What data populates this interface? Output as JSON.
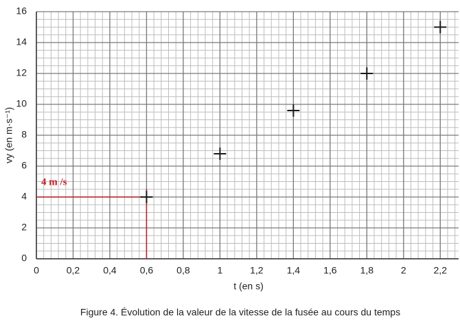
{
  "chart_data": {
    "type": "scatter",
    "title": "Figure 4. Évolution de la valeur de la vitesse de la fusée au cours du temps",
    "xlabel": "t (en s)",
    "ylabel": "vy (en m·s⁻¹)",
    "x": [
      0.6,
      1,
      1.4,
      1.8,
      2.2
    ],
    "values": [
      4,
      6.8,
      9.6,
      12,
      15
    ],
    "color": "#1a1a1a",
    "xlim": [
      0,
      2.3
    ],
    "ylim": [
      0,
      16
    ],
    "xticks": [
      0,
      {
        "value": 0.2,
        "label": "0,2"
      },
      {
        "value": 0.4,
        "label": "0,4"
      },
      {
        "value": 0.6,
        "label": "0,6"
      },
      {
        "value": 0.8,
        "label": "0,8"
      },
      1,
      {
        "value": 1.2,
        "label": "1,2"
      },
      {
        "value": 1.4,
        "label": "1,4"
      },
      {
        "value": 1.6,
        "label": "1,6"
      },
      {
        "value": 1.8,
        "label": "1,8"
      },
      2,
      {
        "value": 2.2,
        "label": "2,2"
      }
    ],
    "yticks": [
      0,
      2,
      4,
      6,
      8,
      10,
      12,
      14,
      16
    ],
    "grid": true,
    "minor_divisions": [
      5,
      4
    ],
    "annotation": "4 m /s",
    "annotation_color": "#c0202a"
  }
}
